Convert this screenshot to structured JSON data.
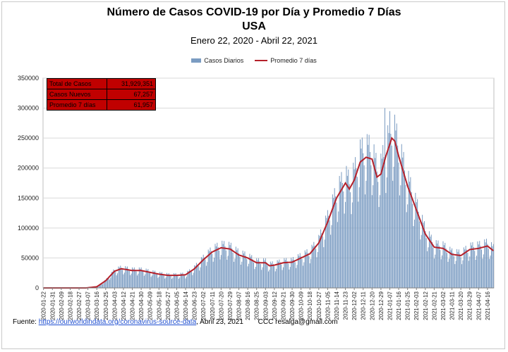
{
  "title_line1": "Número de  Casos  COVID-19 por Día y Promedio 7 Días",
  "title_line2": "USA",
  "subtitle": "Enero 22, 2020 - Abril 22, 2021",
  "legend": {
    "bars": "Casos Diarios",
    "line": "Promedio 7 días"
  },
  "stats": {
    "total_label": "Total de Casos",
    "total_value": "31,929,351",
    "new_label": "Casos Nuevos",
    "new_value": "67,257",
    "avg_label": "Promedio 7 días",
    "avg_value": "61,957"
  },
  "footer": {
    "prefix": "Fuente:",
    "link": "https://ourworldindata.org/coronavirus-source-data",
    "date": "Abril 23, 2021",
    "org": "CCC",
    "email": "resalga@gmail.com"
  },
  "colors": {
    "bars": "#7b9cc2",
    "line": "#b5202a",
    "stats_bg": "#c00000",
    "grid": "#d9d9d9"
  },
  "chart_data": {
    "type": "bar",
    "title": "Número de  Casos  COVID-19 por Día y Promedio 7 Días",
    "subtitle": "USA",
    "xlabel": "",
    "ylabel": "",
    "ylim": [
      0,
      350000
    ],
    "yticks": [
      0,
      50000,
      100000,
      150000,
      200000,
      250000,
      300000,
      350000
    ],
    "grid": true,
    "legend_position": "top",
    "x_range": [
      "2020-01-22",
      "2021-04-22"
    ],
    "x_tick_labels": [
      "2020-01-22",
      "2020-01-31",
      "2020-02-09",
      "2020-02-18",
      "2020-02-27",
      "2020-03-07",
      "2020-03-16",
      "2020-03-25",
      "2020-04-03",
      "2020-04-12",
      "2020-04-21",
      "2020-04-30",
      "2020-05-09",
      "2020-05-18",
      "2020-05-27",
      "2020-06-05",
      "2020-06-14",
      "2020-06-23",
      "2020-07-02",
      "2020-07-11",
      "2020-07-20",
      "2020-07-29",
      "2020-08-07",
      "2020-08-16",
      "2020-08-25",
      "2020-09-03",
      "2020-09-12",
      "2020-09-21",
      "2020-09-30",
      "2020-10-09",
      "2020-10-18",
      "2020-10-27",
      "2020-11-05",
      "2020-11-14",
      "2020-11-23",
      "2020-12-02",
      "2020-12-11",
      "2020-12-20",
      "2020-12-29",
      "2021-01-07",
      "2021-01-16",
      "2021-01-25",
      "2021-02-03",
      "2021-02-12",
      "2021-02-21",
      "2021-03-02",
      "2021-03-11",
      "2021-03-20",
      "2021-03-29",
      "2021-04-07",
      "2021-04-16"
    ],
    "series": [
      {
        "name": "Promedio 7 días",
        "points": [
          [
            "2020-01-22",
            0
          ],
          [
            "2020-03-05",
            0
          ],
          [
            "2020-03-16",
            2000
          ],
          [
            "2020-03-25",
            12000
          ],
          [
            "2020-04-03",
            28000
          ],
          [
            "2020-04-10",
            32000
          ],
          [
            "2020-04-21",
            29000
          ],
          [
            "2020-04-30",
            29000
          ],
          [
            "2020-05-09",
            26000
          ],
          [
            "2020-05-18",
            23000
          ],
          [
            "2020-05-27",
            21000
          ],
          [
            "2020-06-05",
            21000
          ],
          [
            "2020-06-14",
            22000
          ],
          [
            "2020-06-23",
            32000
          ],
          [
            "2020-07-02",
            47000
          ],
          [
            "2020-07-11",
            60000
          ],
          [
            "2020-07-20",
            67000
          ],
          [
            "2020-07-29",
            65000
          ],
          [
            "2020-08-07",
            55000
          ],
          [
            "2020-08-16",
            50000
          ],
          [
            "2020-08-25",
            42000
          ],
          [
            "2020-09-03",
            42000
          ],
          [
            "2020-09-07",
            37000
          ],
          [
            "2020-09-12",
            38000
          ],
          [
            "2020-09-21",
            42000
          ],
          [
            "2020-09-30",
            43000
          ],
          [
            "2020-10-09",
            50000
          ],
          [
            "2020-10-18",
            57000
          ],
          [
            "2020-10-27",
            75000
          ],
          [
            "2020-11-05",
            110000
          ],
          [
            "2020-11-14",
            150000
          ],
          [
            "2020-11-23",
            175000
          ],
          [
            "2020-11-27",
            165000
          ],
          [
            "2020-12-02",
            180000
          ],
          [
            "2020-12-08",
            210000
          ],
          [
            "2020-12-14",
            218000
          ],
          [
            "2020-12-20",
            215000
          ],
          [
            "2020-12-25",
            185000
          ],
          [
            "2020-12-29",
            190000
          ],
          [
            "2021-01-03",
            220000
          ],
          [
            "2021-01-09",
            250000
          ],
          [
            "2021-01-12",
            245000
          ],
          [
            "2021-01-16",
            220000
          ],
          [
            "2021-01-25",
            170000
          ],
          [
            "2021-02-03",
            130000
          ],
          [
            "2021-02-12",
            90000
          ],
          [
            "2021-02-21",
            68000
          ],
          [
            "2021-03-02",
            66000
          ],
          [
            "2021-03-11",
            56000
          ],
          [
            "2021-03-20",
            54000
          ],
          [
            "2021-03-29",
            64000
          ],
          [
            "2021-04-07",
            66000
          ],
          [
            "2021-04-16",
            70000
          ],
          [
            "2021-04-22",
            62000
          ]
        ]
      },
      {
        "name": "Casos Diarios",
        "style": "daily bars around the 7-day average (weekday pattern), peak 300000 on 2021-01-02",
        "max_value": 300000,
        "max_date": "2021-01-02"
      }
    ]
  }
}
